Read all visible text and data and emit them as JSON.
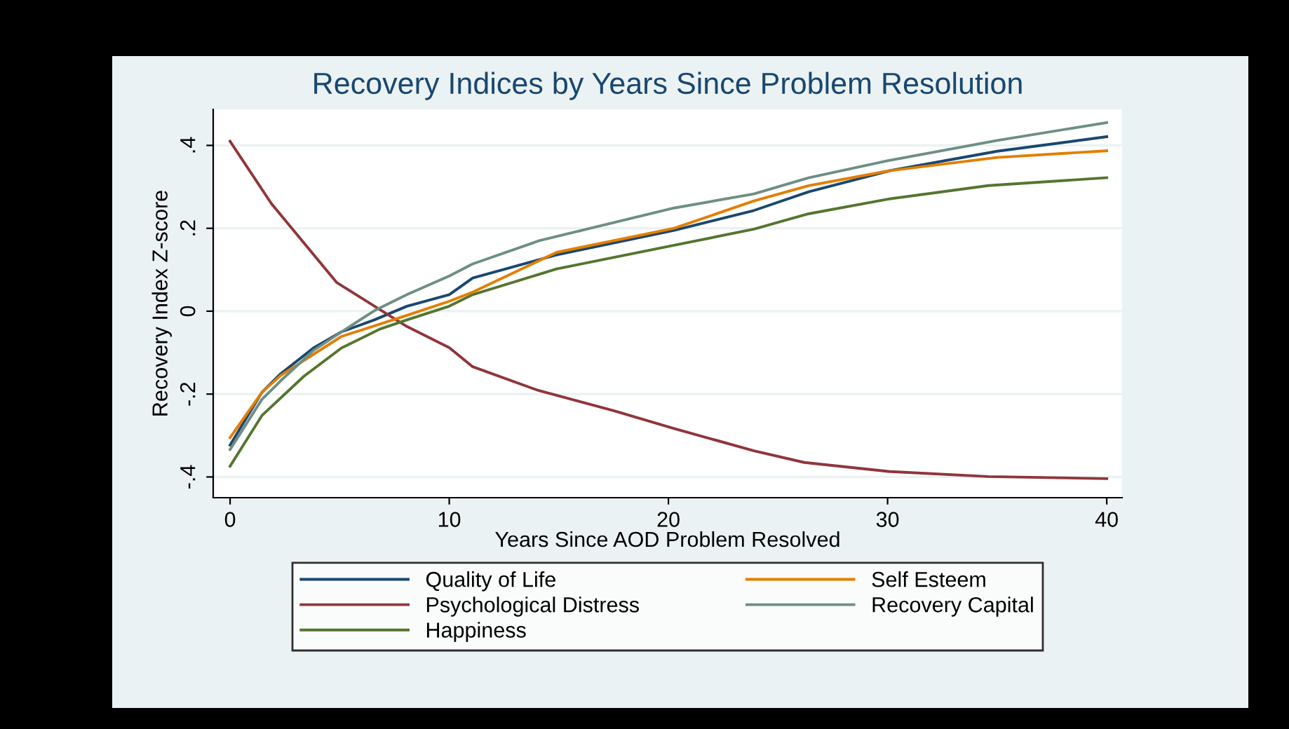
{
  "chart_data": {
    "type": "line",
    "title": "Recovery Indices by Years Since Problem Resolution",
    "xlabel": "Years Since AOD Problem Resolved",
    "ylabel": "Recovery Index Z-score",
    "xlim": [
      -0.77,
      40.7
    ],
    "ylim": [
      -0.45,
      0.487
    ],
    "xticks": [
      0,
      10,
      20,
      30,
      40
    ],
    "yticks": [
      {
        "value": -0.4,
        "label": "-.4"
      },
      {
        "value": -0.2,
        "label": "-.2"
      },
      0,
      {
        "value": 0.2,
        "label": ".2"
      },
      {
        "value": 0.4,
        "label": ".4"
      }
    ],
    "grid": "y",
    "legend": "bottom",
    "marker": "none",
    "line_style": "solid",
    "series": [
      {
        "name": "Quality of Life",
        "color": "#1a476f",
        "x": [
          0,
          1.45,
          2.31,
          3.8,
          5.08,
          6.58,
          8.07,
          10,
          11.07,
          14.9,
          20.26,
          23.9,
          26.4,
          30.1,
          35,
          40
        ],
        "values": [
          -0.323,
          -0.196,
          -0.151,
          -0.089,
          -0.05,
          -0.021,
          0.012,
          0.04,
          0.08,
          0.136,
          0.195,
          0.243,
          0.288,
          0.339,
          0.386,
          0.421
        ]
      },
      {
        "name": "Psychological Distress",
        "color": "#90353b",
        "x": [
          0,
          1.88,
          4.87,
          8.07,
          10,
          11.07,
          14,
          17.5,
          20.26,
          23.9,
          26.2,
          30.1,
          34.6,
          40
        ],
        "values": [
          0.41,
          0.26,
          0.069,
          -0.037,
          -0.088,
          -0.134,
          -0.19,
          -0.24,
          -0.283,
          -0.337,
          -0.365,
          -0.387,
          -0.399,
          -0.404
        ]
      },
      {
        "name": "Happiness",
        "color": "#55752f",
        "x": [
          0,
          1.45,
          3.37,
          5.08,
          6.8,
          8.07,
          10,
          11.07,
          14.9,
          20.26,
          23.9,
          26.4,
          30.1,
          34.6,
          40
        ],
        "values": [
          -0.374,
          -0.252,
          -0.157,
          -0.089,
          -0.044,
          -0.021,
          0.012,
          0.04,
          0.102,
          0.159,
          0.198,
          0.235,
          0.271,
          0.303,
          0.322
        ]
      },
      {
        "name": "Self Esteem",
        "color": "#e37e00",
        "x": [
          0,
          1.45,
          2.31,
          5.08,
          8.07,
          10,
          11.07,
          14.9,
          20.26,
          23.9,
          26.4,
          30.1,
          35,
          40
        ],
        "values": [
          -0.305,
          -0.196,
          -0.155,
          -0.061,
          -0.01,
          0.024,
          0.046,
          0.142,
          0.2,
          0.266,
          0.303,
          0.339,
          0.371,
          0.387
        ]
      },
      {
        "name": "Recovery Capital",
        "color": "#6e8e84",
        "x": [
          0,
          1.45,
          2.31,
          3.8,
          5.08,
          6.58,
          8.07,
          10,
          11.07,
          14.1,
          20.26,
          23.9,
          26.4,
          30.1,
          35,
          40
        ],
        "values": [
          -0.334,
          -0.213,
          -0.168,
          -0.095,
          -0.05,
          0.001,
          0.04,
          0.085,
          0.114,
          0.17,
          0.249,
          0.283,
          0.322,
          0.364,
          0.412,
          0.455
        ]
      }
    ]
  }
}
